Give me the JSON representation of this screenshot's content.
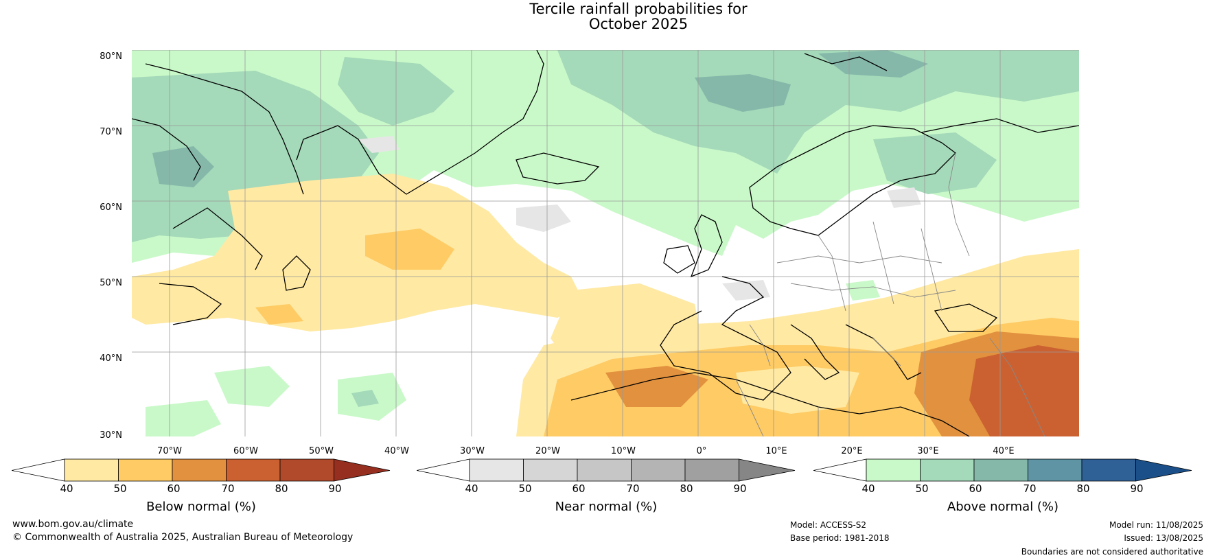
{
  "title": {
    "line1": "Tercile rainfall probabilities for",
    "line2": "October 2025"
  },
  "map": {
    "lat_labels": [
      "80°N",
      "70°N",
      "60°N",
      "50°N",
      "40°N",
      "30°N"
    ],
    "lon_labels": [
      "70°W",
      "60°W",
      "50°W",
      "40°W",
      "30°W",
      "20°W",
      "10°W",
      "0°",
      "10°E",
      "20°E",
      "30°E",
      "40°E"
    ],
    "colors": {
      "ocean_white": "#ffffff",
      "graticule": "#999999",
      "coastline": "#000000",
      "border": "#888888"
    }
  },
  "colorbars": [
    {
      "label": "Below normal (%)",
      "ticks": [
        "40",
        "50",
        "60",
        "70",
        "80",
        "90"
      ],
      "colors": [
        "#ffffff",
        "#ffe9a3",
        "#fecb65",
        "#e2913f",
        "#cb6131",
        "#b04a2a",
        "#962f1f"
      ]
    },
    {
      "label": "Near normal (%)",
      "ticks": [
        "40",
        "50",
        "60",
        "70",
        "80",
        "90"
      ],
      "colors": [
        "#ffffff",
        "#e6e6e6",
        "#d6d6d6",
        "#c6c6c6",
        "#b4b4b4",
        "#a0a0a0",
        "#868686"
      ]
    },
    {
      "label": "Above normal (%)",
      "ticks": [
        "40",
        "50",
        "60",
        "70",
        "80",
        "90"
      ],
      "colors": [
        "#ffffff",
        "#c9f9c9",
        "#a4d9b9",
        "#86b8aa",
        "#5e94a4",
        "#2f6096",
        "#1a4f89"
      ]
    }
  ],
  "footer": {
    "url": "www.bom.gov.au/climate",
    "copyright": "© Commonwealth of Australia 2025, Australian Bureau of Meteorology",
    "model": "Model: ACCESS-S2",
    "base_period": "Base period: 1981-2018",
    "model_run": "Model run: 11/08/2025",
    "issued": "Issued: 13/08/2025",
    "disclaimer": "Boundaries are not considered authoritative"
  }
}
